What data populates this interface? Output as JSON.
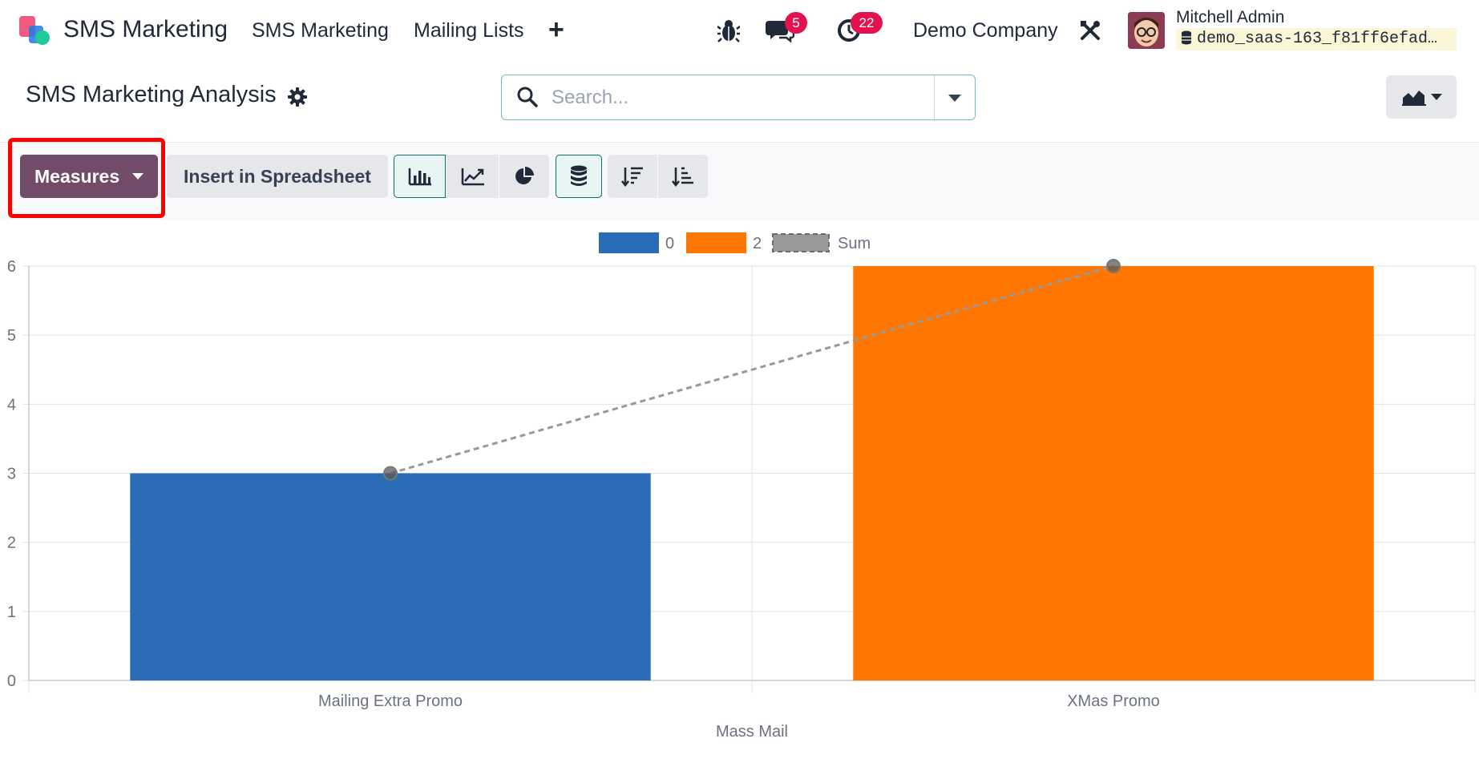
{
  "navbar": {
    "app_name": "SMS Marketing",
    "menu": [
      "SMS Marketing",
      "Mailing Lists"
    ],
    "plus": "+",
    "messages_badge": "5",
    "activities_badge": "22",
    "company": "Demo Company",
    "user_name": "Mitchell Admin",
    "database": "demo_saas-163_f81ff6efad…",
    "icons": [
      "bug-icon",
      "chat-icon",
      "clock-icon",
      "tools-icon",
      "database-icon"
    ]
  },
  "control_panel": {
    "title": "SMS Marketing Analysis",
    "search_placeholder": "Search...",
    "view_switcher_icon": "area-chart-icon"
  },
  "toolbar": {
    "measures_label": "Measures",
    "spreadsheet_label": "Insert in Spreadsheet",
    "buttons": [
      "bar-chart-icon",
      "line-chart-icon",
      "pie-chart-icon",
      "stacked-icon",
      "sort-descending-icon",
      "sort-ascending-icon"
    ]
  },
  "colors": {
    "brand": "#714b67",
    "highlight": "#ff0000",
    "series_0": "#2a6cb5",
    "series_2": "#ff7601",
    "sum": "#999999"
  },
  "chart_data": {
    "type": "bar",
    "categories": [
      "Mailing Extra Promo",
      "XMas Promo"
    ],
    "series": [
      {
        "name": "0",
        "values": [
          3,
          0
        ]
      },
      {
        "name": "2",
        "values": [
          0,
          6
        ]
      }
    ],
    "sum": {
      "name": "Sum",
      "values": [
        3,
        6
      ],
      "style": "dashed-line"
    },
    "xlabel": "Mass Mail",
    "ylabel": "",
    "ylim": [
      0,
      6
    ],
    "yticks": [
      0,
      1,
      2,
      3,
      4,
      5,
      6
    ],
    "stacked": true,
    "grid": true,
    "legend": "top-center"
  }
}
